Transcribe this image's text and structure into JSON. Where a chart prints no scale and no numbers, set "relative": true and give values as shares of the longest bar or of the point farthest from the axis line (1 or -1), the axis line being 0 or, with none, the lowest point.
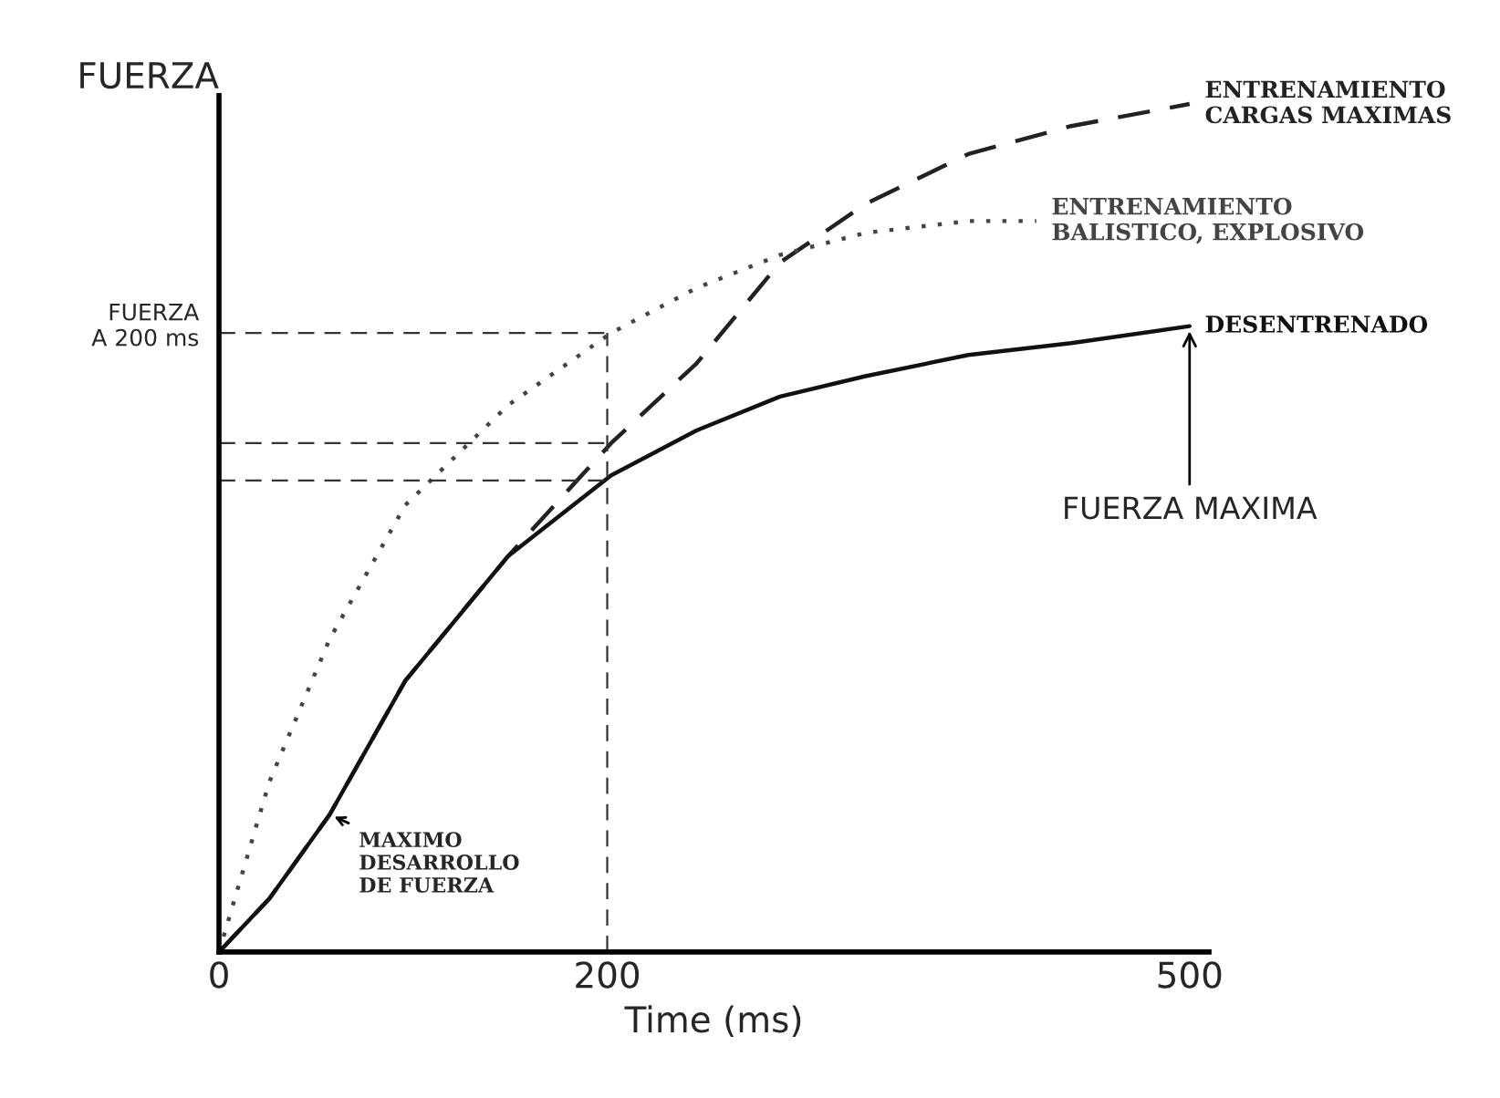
{
  "chart_data": {
    "type": "line",
    "relative": true,
    "xlabel": "Time (ms)",
    "ylabel": "FUERZA",
    "x": [
      0,
      26,
      57,
      96,
      149,
      202,
      246,
      289,
      333,
      386,
      439,
      500
    ],
    "xlim": [
      0,
      510
    ],
    "xticks": [
      0,
      200,
      500
    ],
    "grid": false,
    "legend": false,
    "series": [
      {
        "name": "ENTRENAMIENTO\nCARGAS MAXIMAS",
        "color": "#222222",
        "line_style": "dashed",
        "values": [
          0,
          0.063,
          0.162,
          0.32,
          0.467,
          0.6,
          0.694,
          0.813,
          0.882,
          0.941,
          0.974,
          1.0
        ]
      },
      {
        "name": "ENTRENAMIENTO\nBALISTICO, EXPLOSIVO",
        "color": "#444444",
        "line_style": "dotted",
        "x": [
          0,
          26,
          57,
          96,
          149,
          202,
          246,
          289,
          333,
          386,
          421
        ],
        "values": [
          0,
          0.201,
          0.369,
          0.527,
          0.645,
          0.73,
          0.783,
          0.822,
          0.848,
          0.862,
          0.862
        ]
      },
      {
        "name": "DESENTRENADO",
        "color": "#111111",
        "line_style": "solid",
        "values": [
          0,
          0.063,
          0.162,
          0.32,
          0.467,
          0.562,
          0.615,
          0.655,
          0.679,
          0.704,
          0.718,
          0.738
        ]
      }
    ],
    "ref_lines": [
      {
        "axis": "y",
        "value": 0.73,
        "label": "FUERZA\nA 200 ms",
        "line_style": "dashed"
      },
      {
        "axis": "y",
        "value": 0.6,
        "label": null,
        "line_style": "dashed"
      },
      {
        "axis": "y",
        "value": 0.556,
        "label": null,
        "line_style": "dashed"
      },
      {
        "axis": "x",
        "value": 200,
        "label": null,
        "line_style": "dashed"
      }
    ],
    "annotations": [
      {
        "text": "FUERZA MAXIMA",
        "x": 500,
        "y": 0.738
      },
      {
        "text": "MAXIMO\nDESARROLLO\nDE FUERZA",
        "x": 57,
        "y": 0.162
      }
    ]
  }
}
